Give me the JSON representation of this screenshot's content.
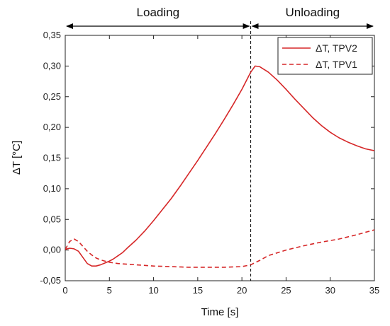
{
  "chart_data": {
    "type": "line",
    "title": "",
    "xlabel": "Time [s]",
    "ylabel": "ΔT [°C]",
    "xlim": [
      0,
      35
    ],
    "ylim": [
      -0.05,
      0.35
    ],
    "xticks": [
      "0",
      "5",
      "10",
      "15",
      "20",
      "25",
      "30",
      "35"
    ],
    "yticks": [
      "-0,05",
      "0,00",
      "0,05",
      "0,10",
      "0,15",
      "0,20",
      "0,25",
      "0,30",
      "0,35"
    ],
    "grid": false,
    "legend_position": "top-right",
    "phases": [
      {
        "label": "Loading",
        "from": 0,
        "to": 21
      },
      {
        "label": "Unloading",
        "from": 21,
        "to": 35
      }
    ],
    "divider_x": 21,
    "series": [
      {
        "name": "ΔT, TPV2",
        "style": "solid",
        "color": "#d62728",
        "x": [
          0,
          0.5,
          1,
          1.5,
          2,
          2.5,
          3,
          3.5,
          4,
          4.5,
          5,
          5.5,
          6,
          6.5,
          7,
          8,
          9,
          10,
          11,
          12,
          13,
          14,
          15,
          16,
          17,
          18,
          19,
          20,
          21,
          21.5,
          22,
          23,
          24,
          25,
          26,
          27,
          28,
          29,
          30,
          31,
          32,
          33,
          34,
          35
        ],
        "y": [
          0.001,
          0.003,
          0.002,
          -0.002,
          -0.012,
          -0.022,
          -0.026,
          -0.026,
          -0.024,
          -0.021,
          -0.018,
          -0.014,
          -0.009,
          -0.004,
          0.003,
          0.016,
          0.031,
          0.048,
          0.066,
          0.084,
          0.104,
          0.125,
          0.146,
          0.168,
          0.19,
          0.213,
          0.237,
          0.262,
          0.29,
          0.3,
          0.299,
          0.29,
          0.277,
          0.262,
          0.246,
          0.231,
          0.216,
          0.203,
          0.192,
          0.183,
          0.176,
          0.17,
          0.165,
          0.162
        ]
      },
      {
        "name": "ΔT, TPV1",
        "style": "dashed",
        "color": "#d62728",
        "x": [
          0,
          0.5,
          1,
          1.5,
          2,
          2.5,
          3,
          3.5,
          4,
          5,
          6,
          7,
          8,
          9,
          10,
          12,
          14,
          16,
          18,
          20,
          21,
          22,
          23,
          25,
          27,
          29,
          31,
          33,
          35
        ],
        "y": [
          0.001,
          0.014,
          0.018,
          0.014,
          0.006,
          -0.002,
          -0.008,
          -0.013,
          -0.016,
          -0.02,
          -0.022,
          -0.023,
          -0.024,
          -0.025,
          -0.026,
          -0.027,
          -0.028,
          -0.028,
          -0.028,
          -0.027,
          -0.024,
          -0.017,
          -0.009,
          0.0,
          0.007,
          0.013,
          0.018,
          0.025,
          0.033
        ]
      }
    ]
  }
}
